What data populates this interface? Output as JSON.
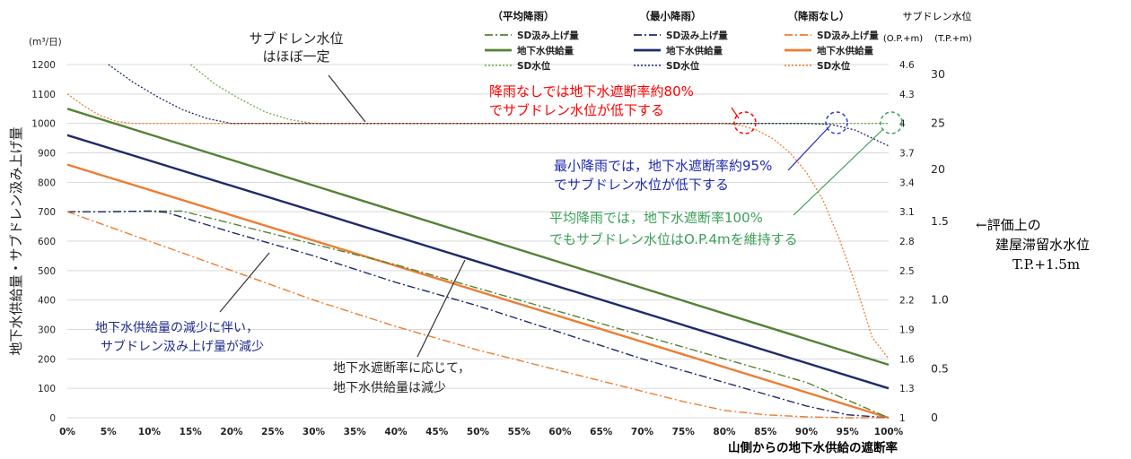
{
  "chart_data": {
    "type": "line",
    "xlabel": "山側からの地下水供給の遮断率",
    "ylabel": "地下水供給量・サブドレン汲み上げ量",
    "y_unit": "(m³/日)",
    "x_ticks": [
      "0%",
      "5%",
      "10%",
      "15%",
      "20%",
      "25%",
      "30%",
      "35%",
      "40%",
      "45%",
      "50%",
      "55%",
      "60%",
      "65%",
      "70%",
      "75%",
      "80%",
      "85%",
      "90%",
      "95%",
      "100%"
    ],
    "ylim": [
      0,
      1200
    ],
    "y_ticks": [
      0,
      100,
      200,
      300,
      400,
      500,
      600,
      700,
      800,
      900,
      1000,
      1100,
      1200
    ],
    "right_axis_title": "サブドレン水位",
    "right_axis_units": [
      "(O.P.+m)",
      "(T.P.+m)"
    ],
    "op_ticks": [
      "1",
      "1.3",
      "1.6",
      "1.9",
      "2.2",
      "2.5",
      "2.8",
      "3.1",
      "3.4",
      "3.7",
      "4",
      "4.3",
      "4.6"
    ],
    "tp_ticks": [
      "0",
      "0.5",
      "1.0",
      "1.5",
      "20",
      "25",
      "30"
    ],
    "legend_groups": [
      {
        "heading": "（平均降雨）",
        "color": "#548235",
        "items": [
          "SD汲み上げ量",
          "地下水供給量",
          "SD水位"
        ]
      },
      {
        "heading": "（最小降雨）",
        "color": "#1f2a6b",
        "items": [
          "SD汲み上げ量",
          "地下水供給量",
          "SD水位"
        ]
      },
      {
        "heading": "（降雨なし）",
        "color": "#ed7d31",
        "items": [
          "SD汲み上げ量",
          "地下水供給量",
          "SD水位"
        ]
      }
    ],
    "series": [
      {
        "key": "avg_supply",
        "group": 0,
        "style": "supply",
        "color": "#548235",
        "x": [
          0,
          100
        ],
        "y": [
          1050,
          180
        ]
      },
      {
        "key": "min_supply",
        "group": 1,
        "style": "supply",
        "color": "#1f2a6b",
        "x": [
          0,
          100
        ],
        "y": [
          960,
          100
        ]
      },
      {
        "key": "none_supply",
        "group": 2,
        "style": "supply",
        "color": "#ed7d31",
        "x": [
          0,
          100
        ],
        "y": [
          860,
          0
        ]
      },
      {
        "key": "avg_pump",
        "group": 0,
        "style": "pump",
        "color": "#548235",
        "x": [
          0,
          5,
          10,
          14,
          20,
          30,
          40,
          50,
          60,
          70,
          80,
          90,
          95,
          100
        ],
        "y": [
          700,
          700,
          702,
          702,
          660,
          590,
          520,
          440,
          360,
          280,
          200,
          120,
          60,
          0
        ]
      },
      {
        "key": "min_pump",
        "group": 1,
        "style": "pump",
        "color": "#1f2a6b",
        "x": [
          0,
          5,
          10,
          12,
          20,
          30,
          40,
          50,
          60,
          70,
          80,
          90,
          95,
          100
        ],
        "y": [
          700,
          700,
          702,
          698,
          630,
          550,
          460,
          380,
          290,
          200,
          120,
          40,
          10,
          0
        ]
      },
      {
        "key": "none_pump",
        "group": 2,
        "style": "pump",
        "color": "#ed7d31",
        "x": [
          0,
          10,
          20,
          30,
          40,
          50,
          60,
          70,
          75,
          80,
          85,
          90,
          95,
          100
        ],
        "y": [
          700,
          600,
          500,
          400,
          310,
          230,
          160,
          90,
          55,
          25,
          10,
          3,
          0,
          0
        ]
      },
      {
        "key": "avg_sd",
        "group": 0,
        "style": "level",
        "color": "#70ad47",
        "x": [
          15,
          18,
          21,
          24,
          27,
          30,
          33,
          100
        ],
        "y": [
          4.6,
          4.4,
          4.25,
          4.12,
          4.04,
          4.0,
          4.0,
          4.0
        ]
      },
      {
        "key": "min_sd",
        "group": 1,
        "style": "level",
        "color": "#1f2a6b",
        "x": [
          5,
          8,
          11,
          14,
          17,
          20,
          25,
          35,
          50,
          70,
          85,
          90,
          93,
          96,
          98,
          100
        ],
        "y": [
          4.6,
          4.42,
          4.27,
          4.14,
          4.05,
          4.0,
          4.0,
          4.0,
          4.0,
          4.0,
          4.0,
          4.0,
          3.99,
          3.93,
          3.85,
          3.77
        ]
      },
      {
        "key": "none_sd",
        "group": 2,
        "style": "level",
        "color": "#ed7d31",
        "x": [
          0,
          2,
          4,
          6,
          8,
          10,
          20,
          40,
          60,
          80,
          82,
          84,
          86,
          88,
          90,
          92,
          94,
          96,
          98,
          100
        ],
        "y": [
          4.3,
          4.18,
          4.08,
          4.02,
          4.0,
          4.0,
          4.0,
          4.0,
          4.0,
          4.0,
          3.98,
          3.93,
          3.84,
          3.7,
          3.5,
          3.22,
          2.82,
          2.35,
          1.82,
          1.6
        ]
      }
    ],
    "annotations": [
      {
        "key": "sd_flat",
        "lines": [
          "サブドレン水位",
          "はほぼ一定"
        ],
        "color": "#222222"
      },
      {
        "key": "none_drop",
        "lines": [
          "降雨なしでは地下水遮断率約80%",
          "でサブドレン水位が低下する"
        ],
        "color": "#ff0000"
      },
      {
        "key": "min_drop",
        "lines": [
          "最小降雨では，地下水遮断率約95%",
          "でサブドレン水位が低下する"
        ],
        "color": "#1f2ab0"
      },
      {
        "key": "avg_keep",
        "lines": [
          "平均降雨では，地下水遮断率100%",
          "でもサブドレン水位はO.P.4mを維持する"
        ],
        "color": "#3c9f5a"
      },
      {
        "key": "pump_dec",
        "lines": [
          "地下水供給量の減少に伴い，",
          "サブドレン汲み上げ量が減少"
        ],
        "color": "#1f2a8a"
      },
      {
        "key": "supply_dec",
        "lines": [
          "地下水遮断率に応じて，",
          "地下水供給量は減少"
        ],
        "color": "#222222"
      }
    ],
    "eval_note": [
      "←評価上の",
      "建屋滞留水水位",
      "T.P.+1.5m"
    ]
  }
}
